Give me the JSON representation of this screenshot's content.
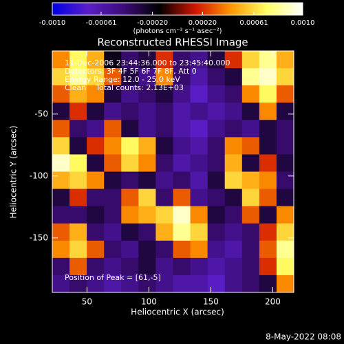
{
  "chart_data": {
    "type": "heatmap",
    "title": "Reconstructed RHESSI Image",
    "x_label": "Heliocentric X (arcsec)",
    "y_label": "Heliocentric Y (arcsec)",
    "colorbar_label": "(photons cm⁻² s⁻¹ asec⁻²)",
    "annotations": [
      "11-Dec-2006 23:44:36.000 to 23:45:40.000",
      "Detectors: 3F 4F 5F 6F 7F 8F, Att 0",
      "Energy Range: 12.0 - 25.0 keV",
      "Clean    Total counts: 2.13E+03"
    ],
    "peak_label": "Position of Peak = [61,-5]",
    "timestamp": "8-May-2022 08:08",
    "xlim": [
      22,
      217
    ],
    "ylim": [
      -194,
      1
    ],
    "xticks": [
      50,
      100,
      150,
      200
    ],
    "yticks": [
      -50,
      -100,
      -150
    ],
    "zlim": [
      -0.001,
      0.001
    ],
    "zticks": [
      {
        "value": -0.001,
        "label": "-0.0010"
      },
      -0.00061,
      {
        "value": -0.0002,
        "label": "-0.00020"
      },
      {
        "value": 0.0002,
        "label": "0.00020"
      },
      0.00061,
      {
        "value": 0.001,
        "label": "0.0010"
      }
    ],
    "colormap": [
      "#0000e6",
      "#5a1ec8",
      "#3c0c78",
      "#000000",
      "#d21400",
      "#ff9600",
      "#ffff64",
      "#ffffff"
    ],
    "z": [
      [
        0.0004,
        0.0007,
        0.0005,
        -0.0002,
        -0.0004,
        -0.0003,
        0.0002,
        -0.0004,
        -0.0005,
        -0.0003,
        0.0002,
        0.0006,
        0.0008,
        0.0005
      ],
      [
        0.0006,
        0.0008,
        0.0006,
        0.0003,
        -0.0003,
        -0.0005,
        0.0004,
        -0.0004,
        -0.0006,
        -0.0004,
        -0.0003,
        0.0008,
        0.0009,
        0.0006
      ],
      [
        0.0003,
        0.0005,
        0.0004,
        -0.0003,
        -0.0005,
        -0.0004,
        -0.0003,
        -0.0005,
        -0.0007,
        -0.0005,
        -0.0004,
        0.0004,
        0.0007,
        0.0003
      ],
      [
        -0.0003,
        0.0002,
        -0.0003,
        -0.0005,
        -0.0004,
        -0.0005,
        -0.0004,
        -0.0006,
        -0.0005,
        -0.0006,
        -0.0005,
        -0.0003,
        0.0004,
        -0.0003
      ],
      [
        0.0003,
        -0.0004,
        -0.0005,
        0.0003,
        -0.0003,
        -0.0005,
        -0.0004,
        -0.0006,
        -0.0007,
        -0.0005,
        -0.0004,
        -0.0005,
        -0.0003,
        -0.0004
      ],
      [
        0.0006,
        -0.0003,
        0.0002,
        0.0004,
        0.0007,
        0.0005,
        -0.0003,
        -0.0005,
        -0.0006,
        -0.0004,
        0.0004,
        0.0003,
        -0.0003,
        -0.0004
      ],
      [
        0.0009,
        0.0007,
        -0.0003,
        0.0003,
        0.0006,
        0.0004,
        -0.0004,
        -0.0006,
        -0.0005,
        -0.0004,
        0.0005,
        -0.0003,
        0.0002,
        -0.0003
      ],
      [
        0.0005,
        0.0006,
        0.0004,
        -0.0003,
        -0.0004,
        -0.0003,
        -0.0005,
        -0.0004,
        -0.0006,
        -0.0003,
        0.0006,
        0.0005,
        0.0004,
        -0.0004
      ],
      [
        -0.0003,
        0.0002,
        -0.0004,
        -0.0004,
        0.0003,
        0.0006,
        -0.0004,
        0.0003,
        -0.0005,
        -0.0004,
        -0.0003,
        0.0006,
        0.0003,
        -0.0003
      ],
      [
        -0.0004,
        -0.0004,
        -0.0003,
        -0.0004,
        0.0004,
        0.0005,
        0.0006,
        0.0009,
        0.0004,
        -0.0003,
        -0.0004,
        0.0003,
        -0.0003,
        0.0004
      ],
      [
        0.0003,
        0.0005,
        -0.0004,
        -0.0005,
        -0.0003,
        -0.0004,
        0.0005,
        0.0008,
        0.0006,
        -0.0004,
        -0.0005,
        -0.0004,
        0.0002,
        0.0006
      ],
      [
        0.0004,
        0.0006,
        0.0003,
        -0.0004,
        -0.0005,
        -0.0003,
        -0.0004,
        0.0003,
        0.0004,
        -0.0005,
        -0.0006,
        -0.0004,
        0.0003,
        0.0008
      ],
      [
        -0.0004,
        0.0003,
        -0.0004,
        -0.0005,
        -0.0004,
        -0.0003,
        -0.0005,
        -0.0004,
        -0.0005,
        -0.0006,
        -0.0005,
        -0.0004,
        0.0002,
        0.0007
      ],
      [
        -0.0005,
        -0.0004,
        -0.0005,
        -0.0006,
        -0.0005,
        -0.0004,
        -0.0005,
        -0.0006,
        -0.0006,
        -0.0007,
        -0.0005,
        -0.0004,
        -0.0003,
        0.0004
      ]
    ]
  }
}
